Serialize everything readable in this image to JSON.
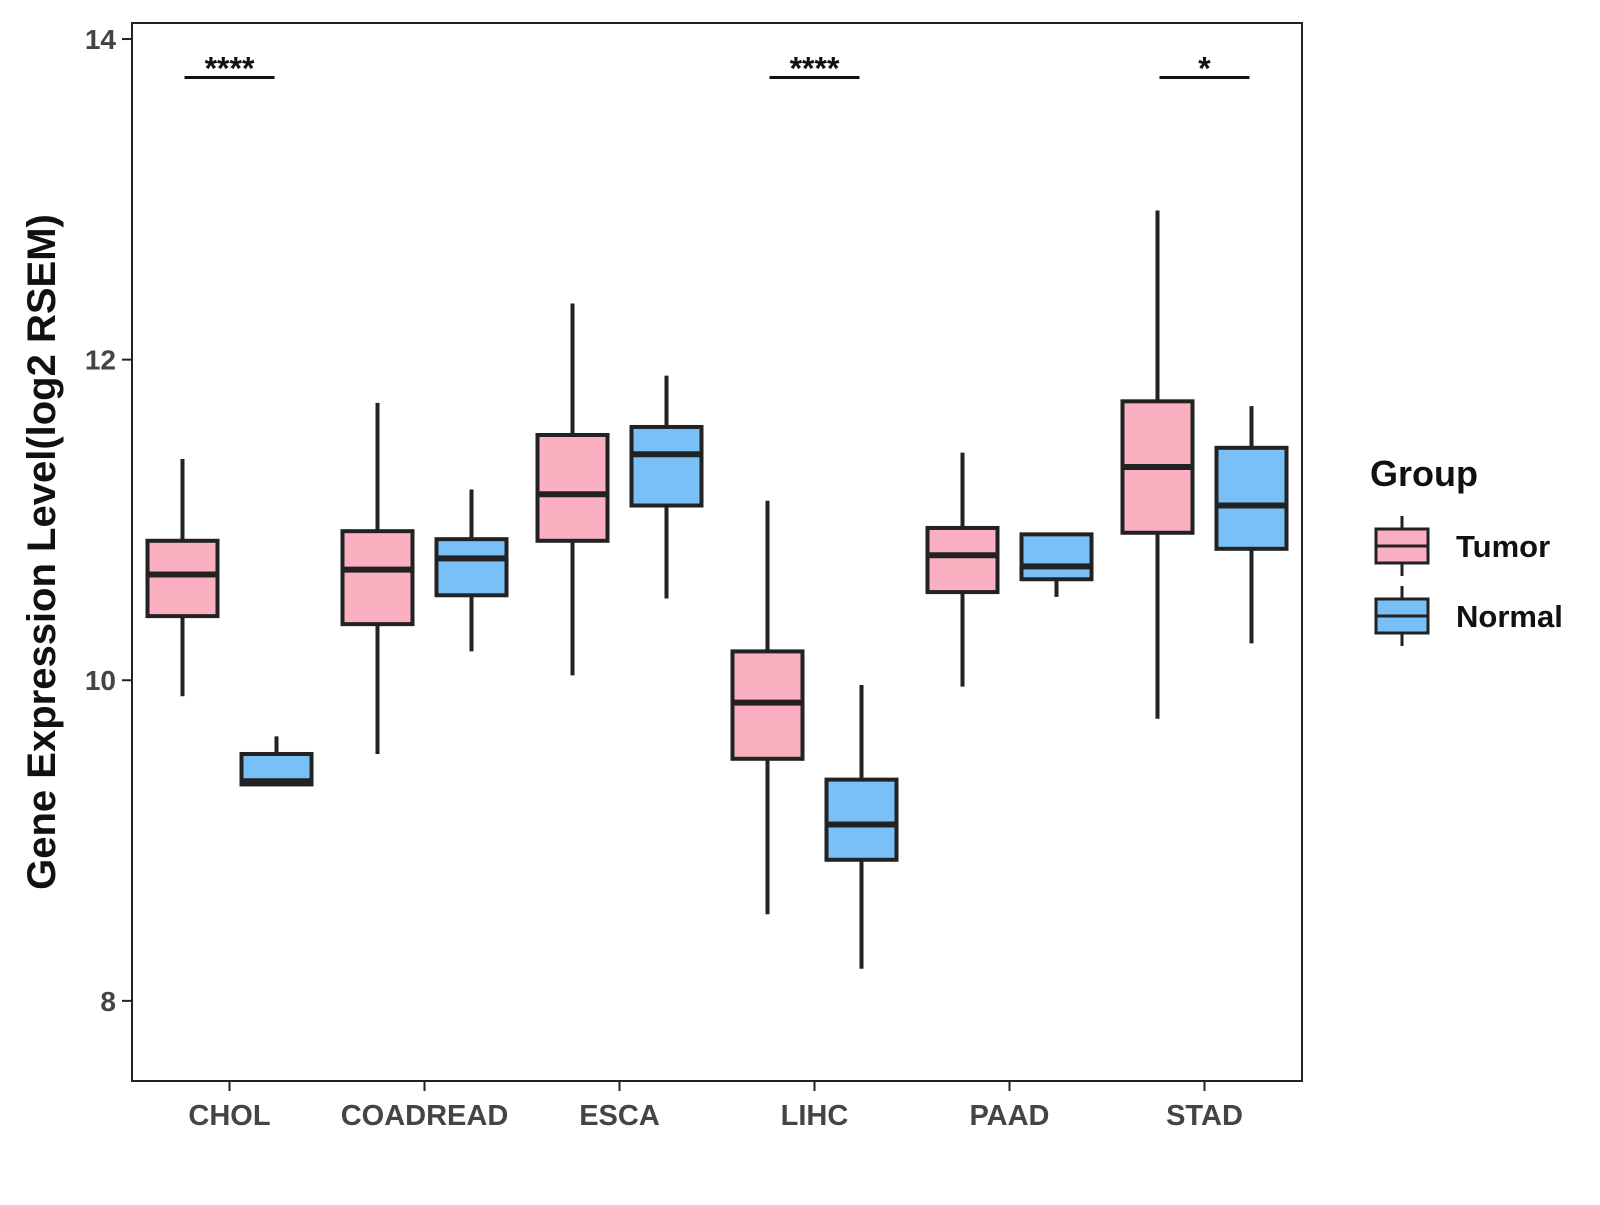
{
  "chart_data": {
    "type": "boxplot",
    "title": "",
    "xlabel": "",
    "ylabel": "Gene Expression Level(log2 RSEM)",
    "ylim": [
      7.5,
      14.1
    ],
    "yticks": [
      8,
      10,
      12,
      14
    ],
    "yticklabels": [
      "8",
      "10",
      "12",
      "14"
    ],
    "categories": [
      "CHOL",
      "COADREAD",
      "ESCA",
      "LIHC",
      "PAAD",
      "STAD"
    ],
    "series": [
      {
        "name": "Tumor",
        "color": "#FBB0C1",
        "boxes": [
          {
            "category": "CHOL",
            "whisker_low": 9.9,
            "q1": 10.4,
            "median": 10.66,
            "q3": 10.87,
            "whisker_high": 11.38
          },
          {
            "category": "COADREAD",
            "whisker_low": 9.54,
            "q1": 10.35,
            "median": 10.69,
            "q3": 10.93,
            "whisker_high": 11.73
          },
          {
            "category": "ESCA",
            "whisker_low": 10.03,
            "q1": 10.87,
            "median": 11.16,
            "q3": 11.53,
            "whisker_high": 12.35
          },
          {
            "category": "LIHC",
            "whisker_low": 8.54,
            "q1": 9.51,
            "median": 9.86,
            "q3": 10.18,
            "whisker_high": 11.12
          },
          {
            "category": "PAAD",
            "whisker_low": 9.96,
            "q1": 10.55,
            "median": 10.78,
            "q3": 10.95,
            "whisker_high": 11.42
          },
          {
            "category": "STAD",
            "whisker_low": 9.76,
            "q1": 10.92,
            "median": 11.33,
            "q3": 11.74,
            "whisker_high": 12.93
          }
        ]
      },
      {
        "name": "Normal",
        "color": "#79C0F7",
        "boxes": [
          {
            "category": "CHOL",
            "whisker_low": 9.35,
            "q1": 9.35,
            "median": 9.37,
            "q3": 9.54,
            "whisker_high": 9.65
          },
          {
            "category": "COADREAD",
            "whisker_low": 10.18,
            "q1": 10.53,
            "median": 10.76,
            "q3": 10.88,
            "whisker_high": 11.19
          },
          {
            "category": "ESCA",
            "whisker_low": 10.51,
            "q1": 11.09,
            "median": 11.41,
            "q3": 11.58,
            "whisker_high": 11.9
          },
          {
            "category": "LIHC",
            "whisker_low": 8.2,
            "q1": 8.88,
            "median": 9.1,
            "q3": 9.38,
            "whisker_high": 9.97
          },
          {
            "category": "PAAD",
            "whisker_low": 10.52,
            "q1": 10.63,
            "median": 10.71,
            "q3": 10.91,
            "whisker_high": 10.91
          },
          {
            "category": "STAD",
            "whisker_low": 10.23,
            "q1": 10.82,
            "median": 11.09,
            "q3": 11.45,
            "whisker_high": 11.71
          }
        ]
      }
    ],
    "significance": [
      {
        "category": "CHOL",
        "label": "****"
      },
      {
        "category": "COADREAD",
        "label": ""
      },
      {
        "category": "ESCA",
        "label": ""
      },
      {
        "category": "LIHC",
        "label": "****"
      },
      {
        "category": "PAAD",
        "label": ""
      },
      {
        "category": "STAD",
        "label": "*"
      }
    ],
    "significance_level": 13.76,
    "legend": {
      "title": "Group",
      "position": "right",
      "entries": [
        "Tumor",
        "Normal"
      ]
    },
    "grid": false
  }
}
